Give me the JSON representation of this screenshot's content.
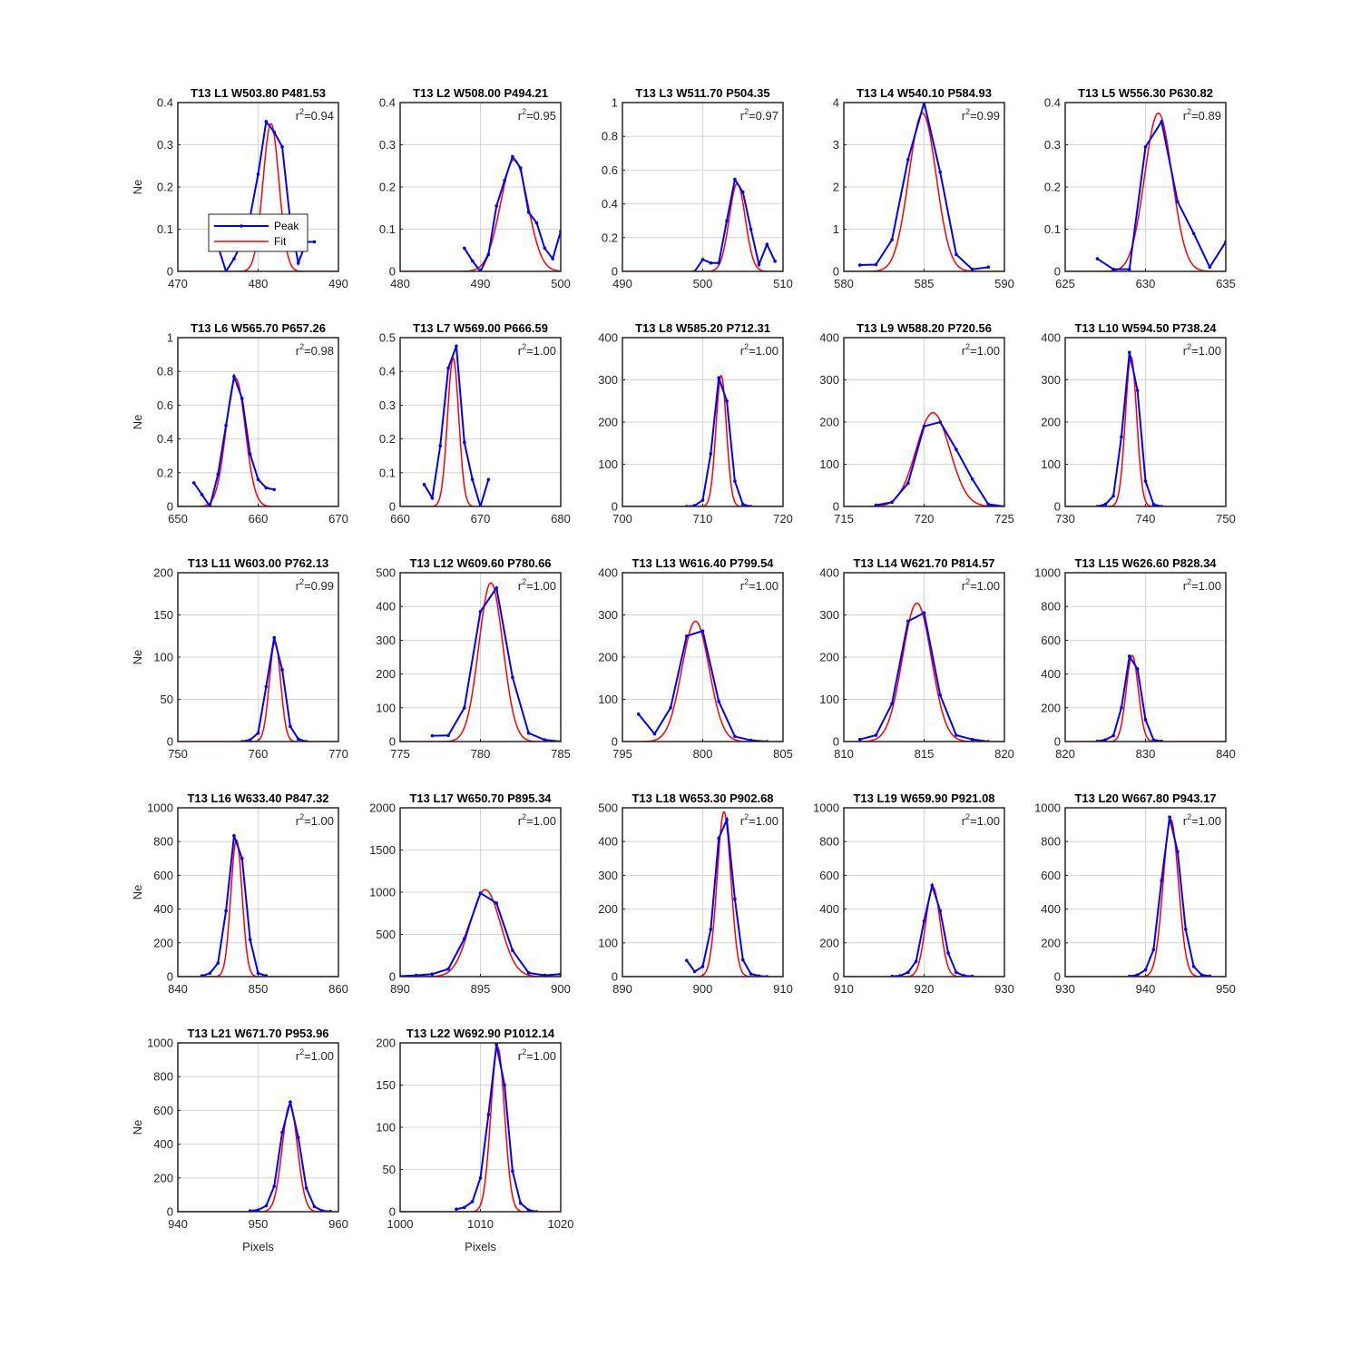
{
  "figure": {
    "legend": {
      "peak_label": "Peak",
      "fit_label": "Fit"
    },
    "colors": {
      "peak": "#0000ff",
      "fit": "#ff0000",
      "grid": "#d4d4d4",
      "axes": "#262626"
    }
  },
  "chart_data": [
    {
      "type": "line",
      "title": "T13 L1 W503.80 P481.53",
      "r2": "0.94",
      "ylabel": "Ne",
      "xlabel": "",
      "xlim": [
        470,
        490
      ],
      "ylim": [
        0,
        0.4
      ],
      "xticks": [
        "470",
        "480",
        "490"
      ],
      "yticks": [
        "0",
        "0.1",
        "0.2",
        "0.3",
        "0.4"
      ],
      "grid_x": 480,
      "legend": true,
      "peak": {
        "x": [
          474,
          475,
          476,
          477,
          478,
          479,
          480,
          481,
          482,
          483,
          484,
          485,
          486,
          487
        ],
        "y": [
          0.07,
          0.06,
          0.0,
          0.03,
          0.07,
          0.13,
          0.23,
          0.355,
          0.33,
          0.295,
          0.12,
          0.02,
          0.07,
          0.07
        ]
      },
      "fit": {
        "mu": 481.6,
        "sigma": 1.0,
        "amp": 0.35
      }
    },
    {
      "type": "line",
      "title": "T13 L2 W508.00 P494.21",
      "r2": "0.95",
      "ylabel": "",
      "xlabel": "",
      "xlim": [
        480,
        500
      ],
      "ylim": [
        0,
        0.4
      ],
      "xticks": [
        "480",
        "490",
        "500"
      ],
      "yticks": [
        "0",
        "0.1",
        "0.2",
        "0.3",
        "0.4"
      ],
      "grid_x": 490,
      "peak": {
        "x": [
          488,
          489,
          490,
          491,
          492,
          493,
          494,
          495,
          496,
          497,
          498,
          499,
          500
        ],
        "y": [
          0.055,
          0.025,
          0.0,
          0.04,
          0.155,
          0.215,
          0.272,
          0.245,
          0.14,
          0.115,
          0.055,
          0.03,
          0.095
        ]
      },
      "fit": {
        "mu": 494.2,
        "sigma": 1.7,
        "amp": 0.265
      }
    },
    {
      "type": "line",
      "title": "T13 L3 W511.70 P504.35",
      "r2": "0.97",
      "ylabel": "",
      "xlabel": "",
      "xlim": [
        490,
        510
      ],
      "ylim": [
        0,
        1
      ],
      "xticks": [
        "490",
        "500",
        "510"
      ],
      "yticks": [
        "0",
        "0.2",
        "0.4",
        "0.6",
        "0.8",
        "1"
      ],
      "grid_x": 500,
      "peak": {
        "x": [
          499,
          500,
          501,
          502,
          503,
          504,
          505,
          506,
          507,
          508,
          509
        ],
        "y": [
          0.0,
          0.07,
          0.05,
          0.05,
          0.3,
          0.545,
          0.47,
          0.25,
          0.04,
          0.16,
          0.06
        ]
      },
      "fit": {
        "mu": 504.3,
        "sigma": 1.0,
        "amp": 0.52
      }
    },
    {
      "type": "line",
      "title": "T13 L4 W540.10 P584.93",
      "r2": "0.99",
      "ylabel": "",
      "xlabel": "",
      "xlim": [
        580,
        590
      ],
      "ylim": [
        0,
        4
      ],
      "xticks": [
        "580",
        "585",
        "590"
      ],
      "yticks": [
        "0",
        "1",
        "2",
        "3",
        "4"
      ],
      "grid_x": 585,
      "peak": {
        "x": [
          581,
          582,
          583,
          584,
          585,
          586,
          587,
          588,
          589
        ],
        "y": [
          0.15,
          0.16,
          0.75,
          2.65,
          4.0,
          2.35,
          0.4,
          0.05,
          0.1
        ]
      },
      "fit": {
        "mu": 584.9,
        "sigma": 0.85,
        "amp": 3.75
      }
    },
    {
      "type": "line",
      "title": "T13 L5 W556.30 P630.82",
      "r2": "0.89",
      "ylabel": "",
      "xlabel": "",
      "xlim": [
        625,
        635
      ],
      "ylim": [
        0,
        0.4
      ],
      "xticks": [
        "625",
        "630",
        "635"
      ],
      "yticks": [
        "0",
        "0.1",
        "0.2",
        "0.3",
        "0.4"
      ],
      "grid_x": 630,
      "peak": {
        "x": [
          627,
          628,
          629,
          630,
          631,
          632,
          633,
          634,
          635
        ],
        "y": [
          0.03,
          0.005,
          0.005,
          0.295,
          0.355,
          0.165,
          0.09,
          0.01,
          0.07
        ]
      },
      "fit": {
        "mu": 630.8,
        "sigma": 0.85,
        "amp": 0.375
      }
    },
    {
      "type": "line",
      "title": "T13 L6 W565.70 P657.26",
      "r2": "0.98",
      "ylabel": "Ne",
      "xlabel": "",
      "xlim": [
        650,
        670
      ],
      "ylim": [
        0,
        1
      ],
      "xticks": [
        "650",
        "660",
        "670"
      ],
      "yticks": [
        "0",
        "0.2",
        "0.4",
        "0.6",
        "0.8",
        "1"
      ],
      "grid_x": 660,
      "peak": {
        "x": [
          652,
          653,
          654,
          655,
          656,
          657,
          658,
          659,
          660,
          661,
          662
        ],
        "y": [
          0.14,
          0.07,
          0.0,
          0.19,
          0.48,
          0.77,
          0.64,
          0.31,
          0.16,
          0.11,
          0.1
        ]
      },
      "fit": {
        "mu": 657.2,
        "sigma": 1.2,
        "amp": 0.76
      }
    },
    {
      "type": "line",
      "title": "T13 L7 W569.00 P666.59",
      "r2": "1.00",
      "ylabel": "",
      "xlabel": "",
      "xlim": [
        660,
        680
      ],
      "ylim": [
        0,
        0.5
      ],
      "xticks": [
        "660",
        "670",
        "680"
      ],
      "yticks": [
        "0",
        "0.1",
        "0.2",
        "0.3",
        "0.4",
        "0.5"
      ],
      "grid_x": 670,
      "peak": {
        "x": [
          663,
          664,
          665,
          666,
          667,
          668,
          669,
          670,
          671
        ],
        "y": [
          0.065,
          0.025,
          0.18,
          0.41,
          0.475,
          0.19,
          0.08,
          0.0,
          0.08
        ]
      },
      "fit": {
        "mu": 666.6,
        "sigma": 0.7,
        "amp": 0.44
      }
    },
    {
      "type": "line",
      "title": "T13 L8 W585.20 P712.31",
      "r2": "1.00",
      "ylabel": "",
      "xlabel": "",
      "xlim": [
        700,
        720
      ],
      "ylim": [
        0,
        400
      ],
      "xticks": [
        "700",
        "710",
        "720"
      ],
      "yticks": [
        "0",
        "100",
        "200",
        "300",
        "400"
      ],
      "grid_x": 710,
      "peak": {
        "x": [
          708,
          709,
          710,
          711,
          712,
          713,
          714,
          715,
          716
        ],
        "y": [
          0,
          2,
          15,
          125,
          305,
          250,
          60,
          5,
          0
        ]
      },
      "fit": {
        "mu": 712.3,
        "sigma": 0.65,
        "amp": 310
      }
    },
    {
      "type": "line",
      "title": "T13 L9 W588.20 P720.56",
      "r2": "1.00",
      "ylabel": "",
      "xlabel": "",
      "xlim": [
        715,
        725
      ],
      "ylim": [
        0,
        400
      ],
      "xticks": [
        "715",
        "720",
        "725"
      ],
      "yticks": [
        "0",
        "100",
        "200",
        "300",
        "400"
      ],
      "grid_x": 720,
      "peak": {
        "x": [
          717,
          718,
          719,
          720,
          721,
          722,
          723,
          724,
          725
        ],
        "y": [
          3,
          10,
          55,
          190,
          200,
          135,
          65,
          5,
          0
        ]
      },
      "fit": {
        "mu": 720.55,
        "sigma": 1.05,
        "amp": 222
      }
    },
    {
      "type": "line",
      "title": "T13 L10 W594.50 P738.24",
      "r2": "1.00",
      "ylabel": "",
      "xlabel": "",
      "xlim": [
        730,
        750
      ],
      "ylim": [
        0,
        400
      ],
      "xticks": [
        "730",
        "740",
        "750"
      ],
      "yticks": [
        "0",
        "100",
        "200",
        "300",
        "400"
      ],
      "grid_x": 740,
      "peak": {
        "x": [
          734,
          735,
          736,
          737,
          738,
          739,
          740,
          741,
          742
        ],
        "y": [
          0,
          5,
          25,
          165,
          365,
          275,
          60,
          5,
          0
        ]
      },
      "fit": {
        "mu": 738.2,
        "sigma": 0.7,
        "amp": 355
      }
    },
    {
      "type": "line",
      "title": "T13 L11 W603.00 P762.13",
      "r2": "0.99",
      "ylabel": "Ne",
      "xlabel": "",
      "xlim": [
        750,
        770
      ],
      "ylim": [
        0,
        200
      ],
      "xticks": [
        "750",
        "760",
        "770"
      ],
      "yticks": [
        "0",
        "50",
        "100",
        "150",
        "200"
      ],
      "grid_x": 760,
      "peak": {
        "x": [
          758,
          759,
          760,
          761,
          762,
          763,
          764,
          765,
          766
        ],
        "y": [
          0,
          2,
          10,
          65,
          123,
          85,
          18,
          3,
          0
        ]
      },
      "fit": {
        "mu": 762.1,
        "sigma": 0.7,
        "amp": 118
      }
    },
    {
      "type": "line",
      "title": "T13 L12 W609.60 P780.66",
      "r2": "1.00",
      "ylabel": "",
      "xlabel": "",
      "xlim": [
        775,
        785
      ],
      "ylim": [
        0,
        500
      ],
      "xticks": [
        "775",
        "780",
        "785"
      ],
      "yticks": [
        "0",
        "100",
        "200",
        "300",
        "400",
        "500"
      ],
      "grid_x": 780,
      "peak": {
        "x": [
          777,
          778,
          779,
          780,
          781,
          782,
          783,
          784,
          785
        ],
        "y": [
          17,
          18,
          100,
          385,
          455,
          190,
          25,
          5,
          0
        ]
      },
      "fit": {
        "mu": 780.65,
        "sigma": 0.75,
        "amp": 470
      }
    },
    {
      "type": "line",
      "title": "T13 L13 W616.40 P799.54",
      "r2": "1.00",
      "ylabel": "",
      "xlabel": "",
      "xlim": [
        795,
        805
      ],
      "ylim": [
        0,
        400
      ],
      "xticks": [
        "795",
        "800",
        "805"
      ],
      "yticks": [
        "0",
        "100",
        "200",
        "300",
        "400"
      ],
      "grid_x": 800,
      "peak": {
        "x": [
          796,
          797,
          798,
          799,
          800,
          801,
          802,
          803,
          804
        ],
        "y": [
          65,
          18,
          80,
          250,
          262,
          95,
          12,
          3,
          0
        ]
      },
      "fit": {
        "mu": 799.55,
        "sigma": 0.85,
        "amp": 285
      }
    },
    {
      "type": "line",
      "title": "T13 L14 W621.70 P814.57",
      "r2": "1.00",
      "ylabel": "",
      "xlabel": "",
      "xlim": [
        810,
        820
      ],
      "ylim": [
        0,
        400
      ],
      "xticks": [
        "810",
        "815",
        "820"
      ],
      "yticks": [
        "0",
        "100",
        "200",
        "300",
        "400"
      ],
      "grid_x": 815,
      "peak": {
        "x": [
          811,
          812,
          813,
          814,
          815,
          816,
          817,
          818,
          819
        ],
        "y": [
          5,
          15,
          90,
          285,
          305,
          110,
          15,
          5,
          0
        ]
      },
      "fit": {
        "mu": 814.55,
        "sigma": 0.9,
        "amp": 328
      }
    },
    {
      "type": "line",
      "title": "T13 L15 W626.60 P828.34",
      "r2": "1.00",
      "ylabel": "",
      "xlabel": "",
      "xlim": [
        820,
        840
      ],
      "ylim": [
        0,
        1000
      ],
      "xticks": [
        "820",
        "830",
        "840"
      ],
      "yticks": [
        "0",
        "200",
        "400",
        "600",
        "800",
        "1000"
      ],
      "grid_x": 830,
      "peak": {
        "x": [
          824,
          825,
          826,
          827,
          828,
          829,
          830,
          831,
          832
        ],
        "y": [
          2,
          10,
          35,
          200,
          505,
          430,
          130,
          10,
          2
        ]
      },
      "fit": {
        "mu": 828.35,
        "sigma": 0.75,
        "amp": 510
      }
    },
    {
      "type": "line",
      "title": "T13 L16 W633.40 P847.32",
      "r2": "1.00",
      "ylabel": "Ne",
      "xlabel": "",
      "xlim": [
        840,
        860
      ],
      "ylim": [
        0,
        1000
      ],
      "xticks": [
        "840",
        "850",
        "860"
      ],
      "yticks": [
        "0",
        "200",
        "400",
        "600",
        "800",
        "1000"
      ],
      "grid_x": 850,
      "peak": {
        "x": [
          843,
          844,
          845,
          846,
          847,
          848,
          849,
          850,
          851
        ],
        "y": [
          5,
          20,
          80,
          390,
          835,
          700,
          220,
          20,
          5
        ]
      },
      "fit": {
        "mu": 847.3,
        "sigma": 0.7,
        "amp": 810
      }
    },
    {
      "type": "line",
      "title": "T13 L17 W650.70 P895.34",
      "r2": "1.00",
      "ylabel": "",
      "xlabel": "",
      "xlim": [
        890,
        900
      ],
      "ylim": [
        0,
        2000
      ],
      "xticks": [
        "890",
        "895",
        "900"
      ],
      "yticks": [
        "0",
        "500",
        "1000",
        "1500",
        "2000"
      ],
      "grid_x": 895,
      "peak": {
        "x": [
          890,
          891,
          892,
          893,
          894,
          895,
          896,
          897,
          898,
          899,
          900
        ],
        "y": [
          5,
          15,
          30,
          90,
          450,
          990,
          870,
          310,
          45,
          15,
          30
        ]
      },
      "fit": {
        "mu": 895.3,
        "sigma": 0.95,
        "amp": 1030
      }
    },
    {
      "type": "line",
      "title": "T13 L18 W653.30 P902.68",
      "r2": "1.00",
      "ylabel": "",
      "xlabel": "",
      "xlim": [
        890,
        910
      ],
      "ylim": [
        0,
        500
      ],
      "xticks": [
        "890",
        "900",
        "910"
      ],
      "yticks": [
        "0",
        "100",
        "200",
        "300",
        "400",
        "500"
      ],
      "grid_x": 900,
      "peak": {
        "x": [
          898,
          899,
          900,
          901,
          902,
          903,
          904,
          905,
          906,
          907,
          908
        ],
        "y": [
          48,
          15,
          30,
          140,
          410,
          465,
          230,
          50,
          8,
          2,
          0
        ]
      },
      "fit": {
        "mu": 902.65,
        "sigma": 0.85,
        "amp": 488
      }
    },
    {
      "type": "line",
      "title": "T13 L19 W659.90 P921.08",
      "r2": "1.00",
      "ylabel": "",
      "xlabel": "",
      "xlim": [
        910,
        930
      ],
      "ylim": [
        0,
        1000
      ],
      "xticks": [
        "910",
        "920",
        "930"
      ],
      "yticks": [
        "0",
        "200",
        "400",
        "600",
        "800",
        "1000"
      ],
      "grid_x": 920,
      "peak": {
        "x": [
          916,
          917,
          918,
          919,
          920,
          921,
          922,
          923,
          924,
          925,
          926
        ],
        "y": [
          2,
          5,
          25,
          90,
          330,
          540,
          390,
          140,
          25,
          5,
          2
        ]
      },
      "fit": {
        "mu": 921.1,
        "sigma": 0.9,
        "amp": 530
      }
    },
    {
      "type": "line",
      "title": "T13 L20 W667.80 P943.17",
      "r2": "1.00",
      "ylabel": "",
      "xlabel": "",
      "xlim": [
        930,
        950
      ],
      "ylim": [
        0,
        1000
      ],
      "xticks": [
        "930",
        "940",
        "950"
      ],
      "yticks": [
        "0",
        "200",
        "400",
        "600",
        "800",
        "1000"
      ],
      "grid_x": 940,
      "peak": {
        "x": [
          938,
          939,
          940,
          941,
          942,
          943,
          944,
          945,
          946,
          947,
          948
        ],
        "y": [
          2,
          10,
          40,
          160,
          570,
          945,
          740,
          280,
          60,
          10,
          3
        ]
      },
      "fit": {
        "mu": 943.15,
        "sigma": 0.95,
        "amp": 930
      }
    },
    {
      "type": "line",
      "title": "T13 L21 W671.70 P953.96",
      "r2": "1.00",
      "ylabel": "Ne",
      "xlabel": "Pixels",
      "xlim": [
        940,
        960
      ],
      "ylim": [
        0,
        1000
      ],
      "xticks": [
        "940",
        "950",
        "960"
      ],
      "yticks": [
        "0",
        "200",
        "400",
        "600",
        "800",
        "1000"
      ],
      "grid_x": 950,
      "peak": {
        "x": [
          949,
          950,
          951,
          952,
          953,
          954,
          955,
          956,
          957,
          958,
          959
        ],
        "y": [
          5,
          10,
          35,
          150,
          470,
          650,
          440,
          140,
          30,
          5,
          2
        ]
      },
      "fit": {
        "mu": 953.95,
        "sigma": 0.95,
        "amp": 635
      }
    },
    {
      "type": "line",
      "title": "T13 L22 W692.90 P1012.14",
      "r2": "1.00",
      "ylabel": "",
      "xlabel": "Pixels",
      "xlim": [
        1000,
        1020
      ],
      "ylim": [
        0,
        200
      ],
      "xticks": [
        "1000",
        "1010",
        "1020"
      ],
      "yticks": [
        "0",
        "50",
        "100",
        "150",
        "200"
      ],
      "grid_x": 1010,
      "peak": {
        "x": [
          1007,
          1008,
          1009,
          1010,
          1011,
          1012,
          1013,
          1014,
          1015,
          1016,
          1017
        ],
        "y": [
          3,
          5,
          12,
          40,
          115,
          198,
          150,
          48,
          10,
          2,
          0
        ]
      },
      "fit": {
        "mu": 1012.15,
        "sigma": 0.85,
        "amp": 195
      }
    }
  ]
}
